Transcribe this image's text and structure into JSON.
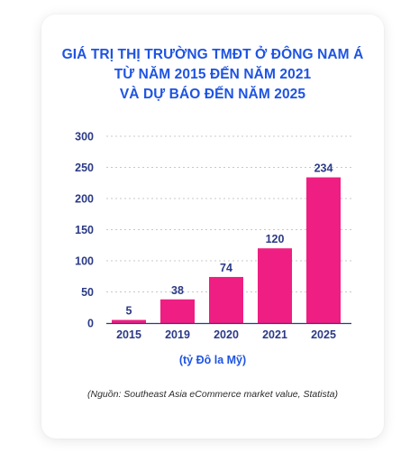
{
  "title_lines": [
    "GIÁ TRỊ THỊ TRƯỜNG TMĐT Ở ĐÔNG NAM Á",
    "TỪ NĂM 2015 ĐẾN NĂM 2021",
    "VÀ DỰ BÁO ĐẾN NĂM 2025"
  ],
  "unit_label": "(tỷ Đô la Mỹ)",
  "source_note": "(Nguồn: Southeast Asia eCommerce market value, Statista)",
  "colors": {
    "title": "#1e54e2",
    "bar": "#ee1e82",
    "axis_text": "#2b3a86",
    "grid": "#c8c8c8"
  },
  "chart_data": {
    "type": "bar",
    "categories": [
      "2015",
      "2019",
      "2020",
      "2021",
      "2025"
    ],
    "values": [
      5,
      38,
      74,
      120,
      234
    ],
    "data_labels": [
      "5",
      "38",
      "74",
      "120",
      "234"
    ],
    "yticks": [
      0,
      50,
      100,
      150,
      200,
      250,
      300
    ],
    "ylim": [
      0,
      300
    ],
    "grid": true,
    "legend": "none"
  }
}
